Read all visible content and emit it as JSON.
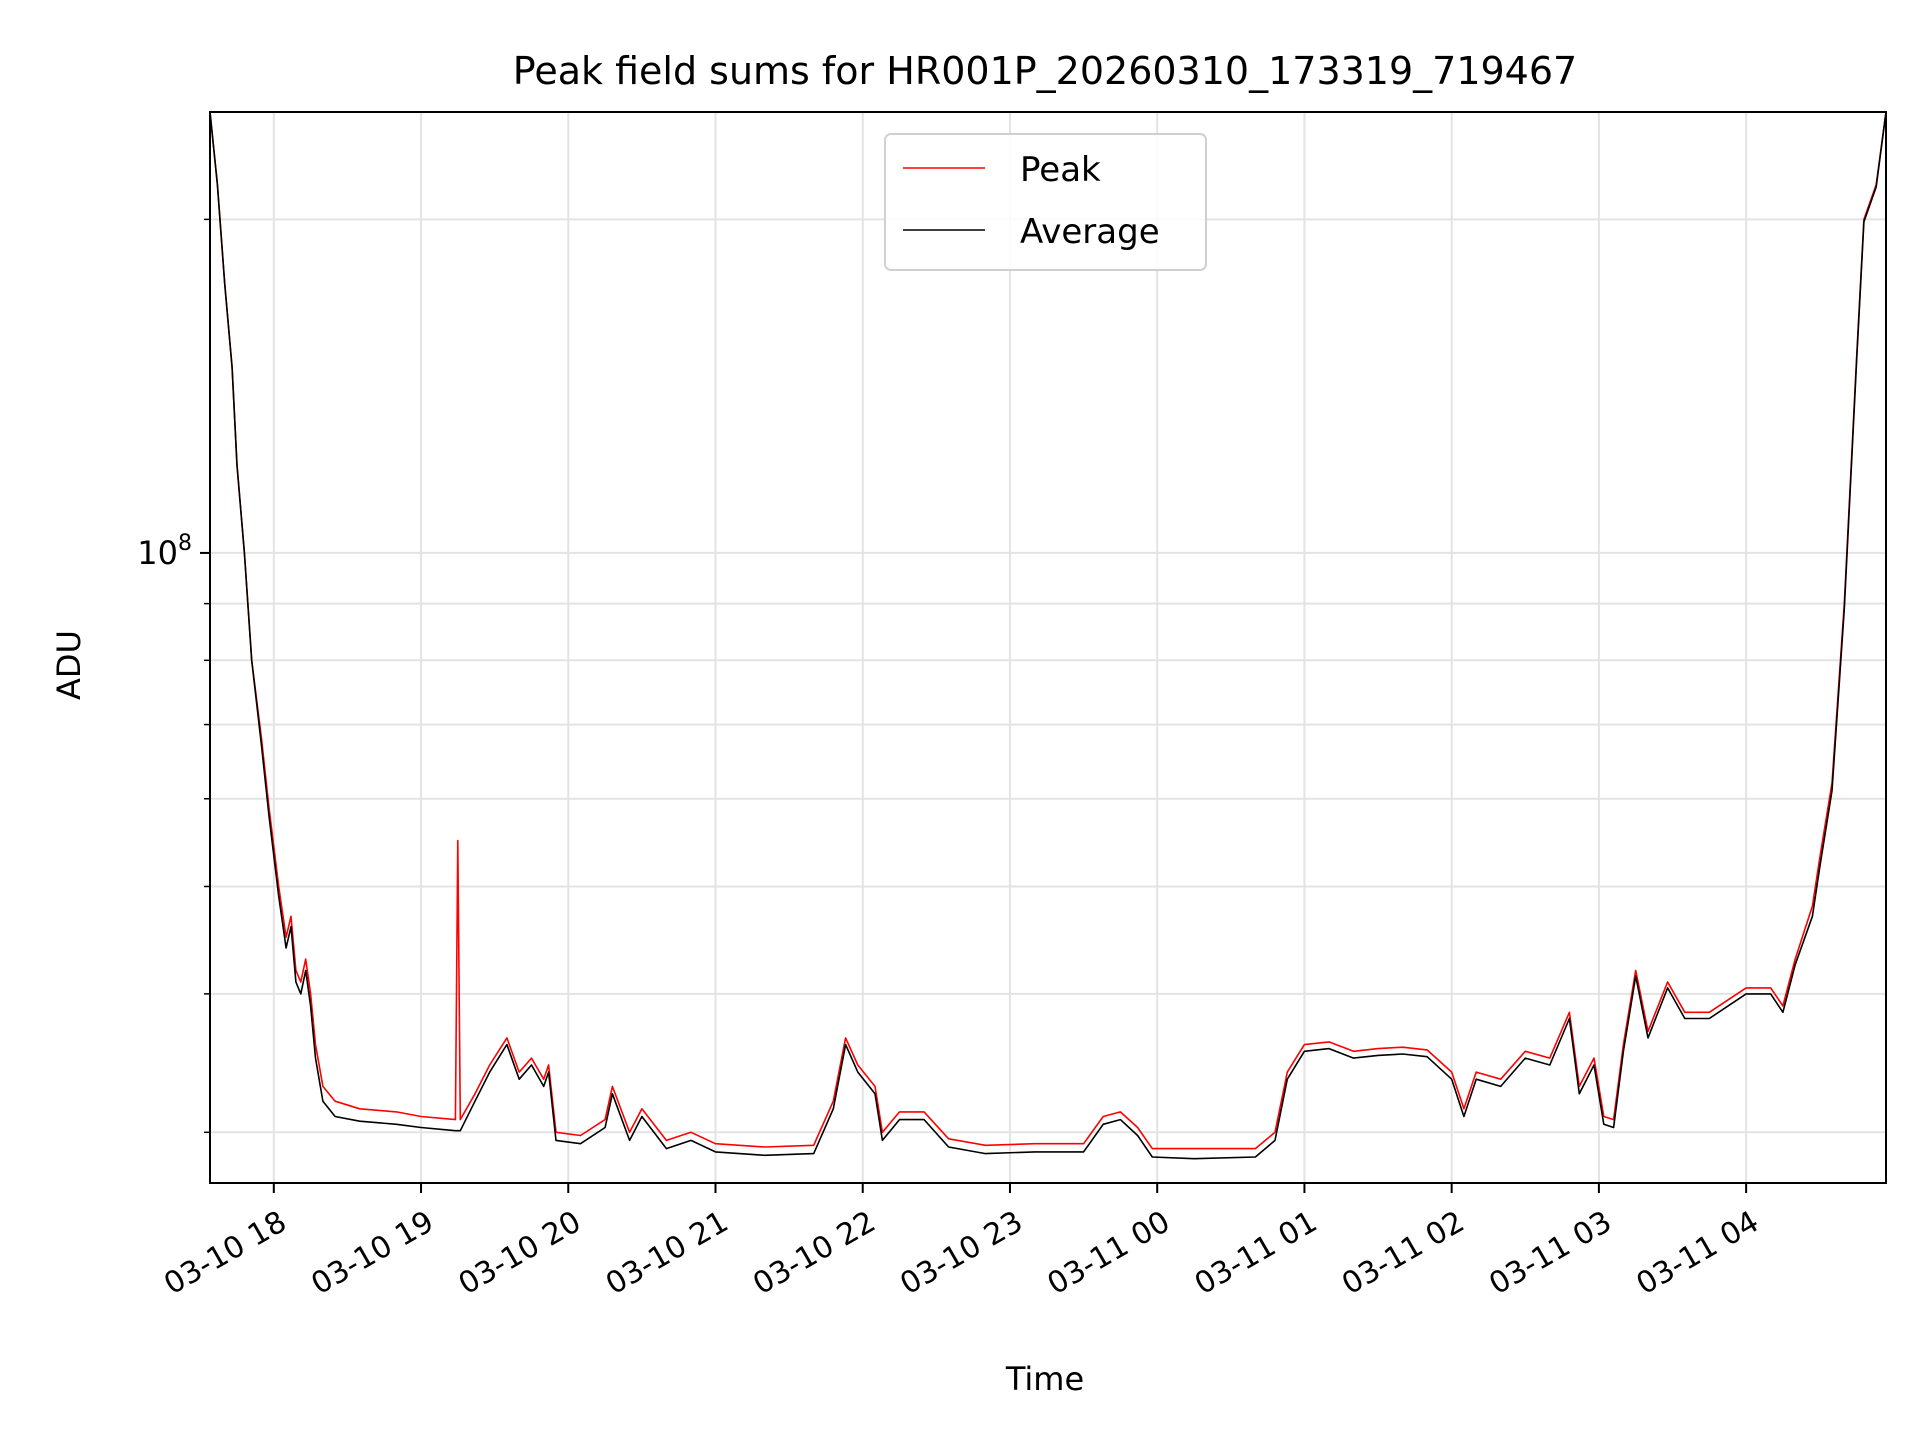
{
  "chart_data": {
    "type": "line",
    "title": "Peak field sums for HR001P_20260310_173319_719467",
    "xlabel": "Time",
    "ylabel": "ADU",
    "yscale": "log",
    "ylim": [
      27000000,
      250000000
    ],
    "xlim": [
      "2026-03-10 17:34",
      "2026-03-11 04:57"
    ],
    "grid": true,
    "legend_position": "top-center",
    "x_ticks": [
      {
        "time": "2026-03-10 18:00",
        "label": "03-10 18"
      },
      {
        "time": "2026-03-10 19:00",
        "label": "03-10 19"
      },
      {
        "time": "2026-03-10 20:00",
        "label": "03-10 20"
      },
      {
        "time": "2026-03-10 21:00",
        "label": "03-10 21"
      },
      {
        "time": "2026-03-10 22:00",
        "label": "03-10 22"
      },
      {
        "time": "2026-03-10 23:00",
        "label": "03-10 23"
      },
      {
        "time": "2026-03-11 00:00",
        "label": "03-11 00"
      },
      {
        "time": "2026-03-11 01:00",
        "label": "03-11 01"
      },
      {
        "time": "2026-03-11 02:00",
        "label": "03-11 02"
      },
      {
        "time": "2026-03-11 03:00",
        "label": "03-11 03"
      },
      {
        "time": "2026-03-11 04:00",
        "label": "03-11 04"
      }
    ],
    "y_major_ticks": [
      {
        "value": 100000000,
        "label_base": "10",
        "label_exp": "8"
      }
    ],
    "y_minor_ticks": [
      30000000,
      40000000,
      50000000,
      60000000,
      70000000,
      80000000,
      90000000,
      200000000
    ],
    "series": [
      {
        "name": "Peak",
        "color": "#ff0000",
        "points": [
          [
            "2026-03-10 17:34",
            250000000
          ],
          [
            "2026-03-10 17:37",
            215000000
          ],
          [
            "2026-03-10 17:40",
            175000000
          ],
          [
            "2026-03-10 17:43",
            147000000
          ],
          [
            "2026-03-10 17:45",
            120000000
          ],
          [
            "2026-03-10 17:48",
            100000000
          ],
          [
            "2026-03-10 17:51",
            80000000
          ],
          [
            "2026-03-10 17:55",
            68000000
          ],
          [
            "2026-03-10 17:58",
            59000000
          ],
          [
            "2026-03-10 18:02",
            50000000
          ],
          [
            "2026-03-10 18:05",
            45000000
          ],
          [
            "2026-03-10 18:07",
            47000000
          ],
          [
            "2026-03-10 18:09",
            42000000
          ],
          [
            "2026-03-10 18:11",
            41000000
          ],
          [
            "2026-03-10 18:13",
            43000000
          ],
          [
            "2026-03-10 18:15",
            40000000
          ],
          [
            "2026-03-10 18:17",
            36000000
          ],
          [
            "2026-03-10 18:20",
            33000000
          ],
          [
            "2026-03-10 18:25",
            32000000
          ],
          [
            "2026-03-10 18:35",
            31500000
          ],
          [
            "2026-03-10 18:50",
            31300000
          ],
          [
            "2026-03-10 19:00",
            31000000
          ],
          [
            "2026-03-10 19:14",
            30800000
          ],
          [
            "2026-03-10 19:15",
            55000000
          ],
          [
            "2026-03-10 19:16",
            30800000
          ],
          [
            "2026-03-10 19:22",
            32500000
          ],
          [
            "2026-03-10 19:28",
            34500000
          ],
          [
            "2026-03-10 19:35",
            36500000
          ],
          [
            "2026-03-10 19:40",
            34000000
          ],
          [
            "2026-03-10 19:45",
            35000000
          ],
          [
            "2026-03-10 19:50",
            33500000
          ],
          [
            "2026-03-10 19:52",
            34500000
          ],
          [
            "2026-03-10 19:55",
            30000000
          ],
          [
            "2026-03-10 20:05",
            29800000
          ],
          [
            "2026-03-10 20:15",
            30800000
          ],
          [
            "2026-03-10 20:18",
            33000000
          ],
          [
            "2026-03-10 20:25",
            30000000
          ],
          [
            "2026-03-10 20:30",
            31500000
          ],
          [
            "2026-03-10 20:40",
            29500000
          ],
          [
            "2026-03-10 20:50",
            30000000
          ],
          [
            "2026-03-10 21:00",
            29300000
          ],
          [
            "2026-03-10 21:20",
            29100000
          ],
          [
            "2026-03-10 21:40",
            29200000
          ],
          [
            "2026-03-10 21:48",
            32000000
          ],
          [
            "2026-03-10 21:53",
            36500000
          ],
          [
            "2026-03-10 21:58",
            34500000
          ],
          [
            "2026-03-10 22:05",
            33000000
          ],
          [
            "2026-03-10 22:08",
            30000000
          ],
          [
            "2026-03-10 22:15",
            31300000
          ],
          [
            "2026-03-10 22:25",
            31300000
          ],
          [
            "2026-03-10 22:35",
            29600000
          ],
          [
            "2026-03-10 22:50",
            29200000
          ],
          [
            "2026-03-10 23:10",
            29300000
          ],
          [
            "2026-03-10 23:30",
            29300000
          ],
          [
            "2026-03-10 23:38",
            31000000
          ],
          [
            "2026-03-10 23:45",
            31300000
          ],
          [
            "2026-03-10 23:52",
            30300000
          ],
          [
            "2026-03-10 23:58",
            29000000
          ],
          [
            "2026-03-11 00:15",
            29000000
          ],
          [
            "2026-03-11 00:40",
            29000000
          ],
          [
            "2026-03-11 00:48",
            30000000
          ],
          [
            "2026-03-11 00:53",
            34000000
          ],
          [
            "2026-03-11 01:00",
            36000000
          ],
          [
            "2026-03-11 01:10",
            36200000
          ],
          [
            "2026-03-11 01:20",
            35500000
          ],
          [
            "2026-03-11 01:30",
            35700000
          ],
          [
            "2026-03-11 01:40",
            35800000
          ],
          [
            "2026-03-11 01:50",
            35600000
          ],
          [
            "2026-03-11 02:00",
            34000000
          ],
          [
            "2026-03-11 02:05",
            31500000
          ],
          [
            "2026-03-11 02:10",
            34000000
          ],
          [
            "2026-03-11 02:20",
            33500000
          ],
          [
            "2026-03-11 02:30",
            35500000
          ],
          [
            "2026-03-11 02:40",
            35000000
          ],
          [
            "2026-03-11 02:48",
            38500000
          ],
          [
            "2026-03-11 02:52",
            33000000
          ],
          [
            "2026-03-11 02:58",
            35000000
          ],
          [
            "2026-03-11 03:02",
            31000000
          ],
          [
            "2026-03-11 03:06",
            30800000
          ],
          [
            "2026-03-11 03:10",
            36000000
          ],
          [
            "2026-03-11 03:15",
            42000000
          ],
          [
            "2026-03-11 03:20",
            37000000
          ],
          [
            "2026-03-11 03:28",
            41000000
          ],
          [
            "2026-03-11 03:35",
            38500000
          ],
          [
            "2026-03-11 03:45",
            38500000
          ],
          [
            "2026-03-11 04:00",
            40500000
          ],
          [
            "2026-03-11 04:10",
            40500000
          ],
          [
            "2026-03-11 04:15",
            39000000
          ],
          [
            "2026-03-11 04:20",
            43000000
          ],
          [
            "2026-03-11 04:27",
            48000000
          ],
          [
            "2026-03-11 04:30",
            53000000
          ],
          [
            "2026-03-11 04:35",
            62000000
          ],
          [
            "2026-03-11 04:40",
            90000000
          ],
          [
            "2026-03-11 04:45",
            150000000
          ],
          [
            "2026-03-11 04:48",
            200000000
          ],
          [
            "2026-03-11 04:53",
            215000000
          ],
          [
            "2026-03-11 04:57",
            250000000
          ]
        ]
      },
      {
        "name": "Average",
        "color": "#000000",
        "points": [
          [
            "2026-03-10 17:34",
            250000000
          ],
          [
            "2026-03-10 17:37",
            215000000
          ],
          [
            "2026-03-10 17:40",
            175000000
          ],
          [
            "2026-03-10 17:43",
            147000000
          ],
          [
            "2026-03-10 17:45",
            120000000
          ],
          [
            "2026-03-10 17:48",
            100000000
          ],
          [
            "2026-03-10 17:51",
            80000000
          ],
          [
            "2026-03-10 17:55",
            67000000
          ],
          [
            "2026-03-10 17:58",
            58000000
          ],
          [
            "2026-03-10 18:02",
            49000000
          ],
          [
            "2026-03-10 18:05",
            44000000
          ],
          [
            "2026-03-10 18:07",
            46000000
          ],
          [
            "2026-03-10 18:09",
            41000000
          ],
          [
            "2026-03-10 18:11",
            40000000
          ],
          [
            "2026-03-10 18:13",
            42000000
          ],
          [
            "2026-03-10 18:15",
            39000000
          ],
          [
            "2026-03-10 18:17",
            35000000
          ],
          [
            "2026-03-10 18:20",
            32000000
          ],
          [
            "2026-03-10 18:25",
            31000000
          ],
          [
            "2026-03-10 18:35",
            30700000
          ],
          [
            "2026-03-10 18:50",
            30500000
          ],
          [
            "2026-03-10 19:00",
            30300000
          ],
          [
            "2026-03-10 19:14",
            30100000
          ],
          [
            "2026-03-10 19:15",
            30100000
          ],
          [
            "2026-03-10 19:16",
            30100000
          ],
          [
            "2026-03-10 19:22",
            32000000
          ],
          [
            "2026-03-10 19:28",
            34000000
          ],
          [
            "2026-03-10 19:35",
            36000000
          ],
          [
            "2026-03-10 19:40",
            33500000
          ],
          [
            "2026-03-10 19:45",
            34500000
          ],
          [
            "2026-03-10 19:50",
            33000000
          ],
          [
            "2026-03-10 19:52",
            34000000
          ],
          [
            "2026-03-10 19:55",
            29500000
          ],
          [
            "2026-03-10 20:05",
            29300000
          ],
          [
            "2026-03-10 20:15",
            30300000
          ],
          [
            "2026-03-10 20:18",
            32500000
          ],
          [
            "2026-03-10 20:25",
            29500000
          ],
          [
            "2026-03-10 20:30",
            31000000
          ],
          [
            "2026-03-10 20:40",
            29000000
          ],
          [
            "2026-03-10 20:50",
            29500000
          ],
          [
            "2026-03-10 21:00",
            28800000
          ],
          [
            "2026-03-10 21:20",
            28600000
          ],
          [
            "2026-03-10 21:40",
            28700000
          ],
          [
            "2026-03-10 21:48",
            31500000
          ],
          [
            "2026-03-10 21:53",
            36000000
          ],
          [
            "2026-03-10 21:58",
            34000000
          ],
          [
            "2026-03-10 22:05",
            32500000
          ],
          [
            "2026-03-10 22:08",
            29500000
          ],
          [
            "2026-03-10 22:15",
            30800000
          ],
          [
            "2026-03-10 22:25",
            30800000
          ],
          [
            "2026-03-10 22:35",
            29100000
          ],
          [
            "2026-03-10 22:50",
            28700000
          ],
          [
            "2026-03-10 23:10",
            28800000
          ],
          [
            "2026-03-10 23:30",
            28800000
          ],
          [
            "2026-03-10 23:38",
            30500000
          ],
          [
            "2026-03-10 23:45",
            30800000
          ],
          [
            "2026-03-10 23:52",
            29800000
          ],
          [
            "2026-03-10 23:58",
            28500000
          ],
          [
            "2026-03-11 00:15",
            28400000
          ],
          [
            "2026-03-11 00:40",
            28500000
          ],
          [
            "2026-03-11 00:48",
            29500000
          ],
          [
            "2026-03-11 00:53",
            33500000
          ],
          [
            "2026-03-11 01:00",
            35500000
          ],
          [
            "2026-03-11 01:10",
            35700000
          ],
          [
            "2026-03-11 01:20",
            35000000
          ],
          [
            "2026-03-11 01:30",
            35200000
          ],
          [
            "2026-03-11 01:40",
            35300000
          ],
          [
            "2026-03-11 01:50",
            35100000
          ],
          [
            "2026-03-11 02:00",
            33500000
          ],
          [
            "2026-03-11 02:05",
            31000000
          ],
          [
            "2026-03-11 02:10",
            33500000
          ],
          [
            "2026-03-11 02:20",
            33000000
          ],
          [
            "2026-03-11 02:30",
            35000000
          ],
          [
            "2026-03-11 02:40",
            34500000
          ],
          [
            "2026-03-11 02:48",
            38000000
          ],
          [
            "2026-03-11 02:52",
            32500000
          ],
          [
            "2026-03-11 02:58",
            34500000
          ],
          [
            "2026-03-11 03:02",
            30500000
          ],
          [
            "2026-03-11 03:06",
            30300000
          ],
          [
            "2026-03-11 03:10",
            35500000
          ],
          [
            "2026-03-11 03:15",
            41500000
          ],
          [
            "2026-03-11 03:20",
            36500000
          ],
          [
            "2026-03-11 03:28",
            40500000
          ],
          [
            "2026-03-11 03:35",
            38000000
          ],
          [
            "2026-03-11 03:45",
            38000000
          ],
          [
            "2026-03-11 04:00",
            40000000
          ],
          [
            "2026-03-11 04:10",
            40000000
          ],
          [
            "2026-03-11 04:15",
            38500000
          ],
          [
            "2026-03-11 04:20",
            42500000
          ],
          [
            "2026-03-11 04:27",
            47000000
          ],
          [
            "2026-03-11 04:30",
            52000000
          ],
          [
            "2026-03-11 04:35",
            61000000
          ],
          [
            "2026-03-11 04:40",
            89000000
          ],
          [
            "2026-03-11 04:45",
            149000000
          ],
          [
            "2026-03-11 04:48",
            199000000
          ],
          [
            "2026-03-11 04:53",
            214000000
          ],
          [
            "2026-03-11 04:57",
            250000000
          ]
        ]
      }
    ]
  }
}
